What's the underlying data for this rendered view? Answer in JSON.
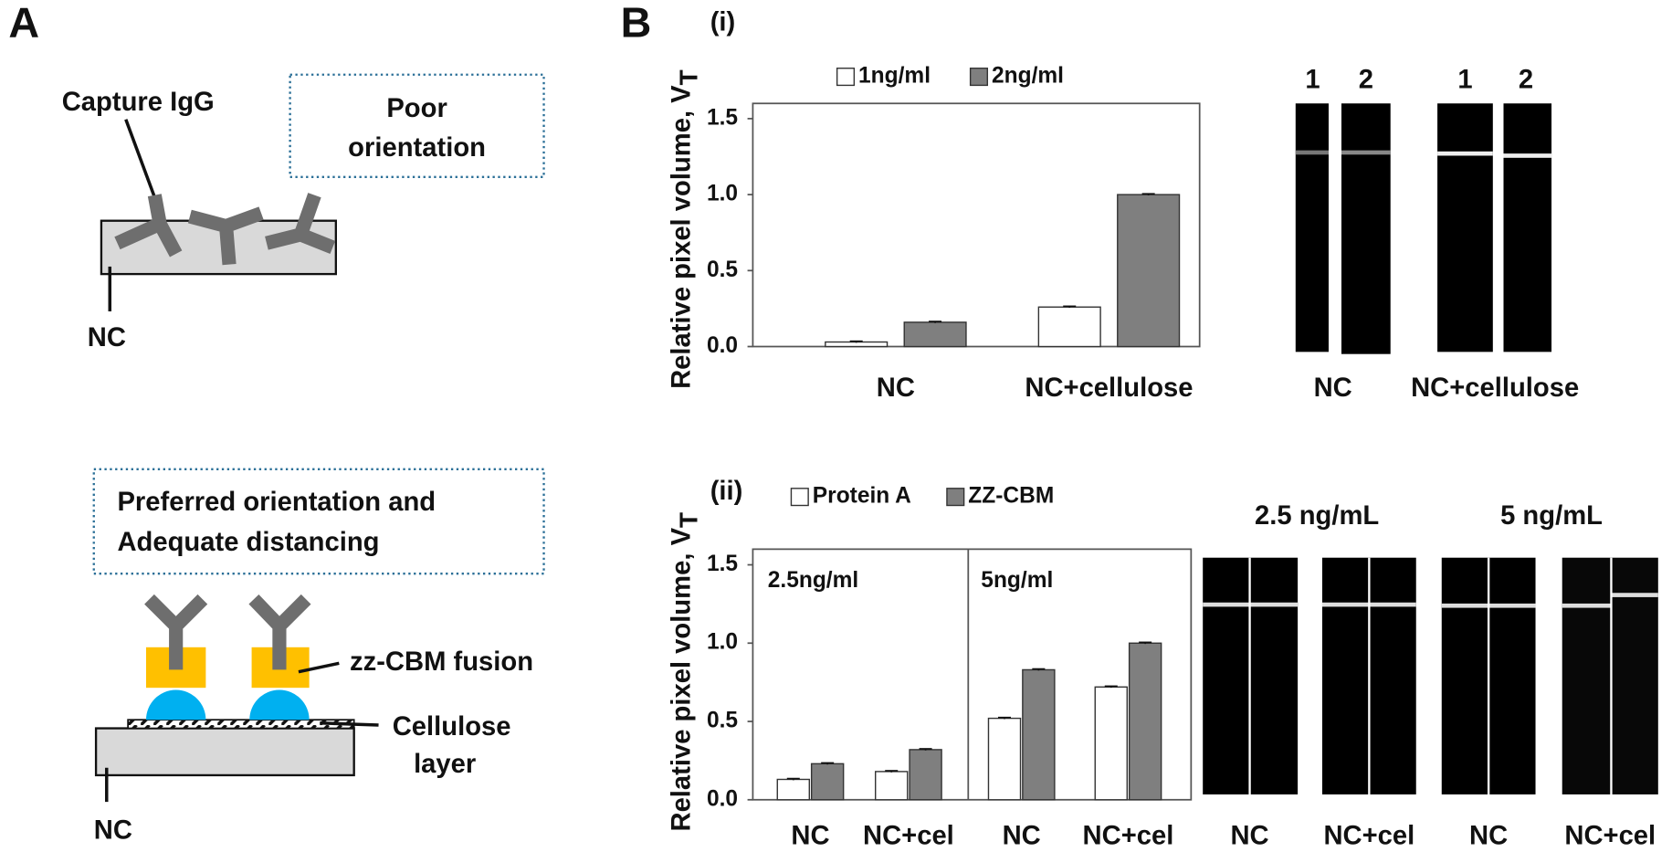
{
  "panel_a": {
    "label": "A",
    "capture": "Capture IgG",
    "poor": [
      "Poor",
      "orientation"
    ],
    "nc_top": "NC",
    "preferred": [
      "Preferred orientation and",
      "Adequate distancing"
    ],
    "fusion": "zz-CBM fusion",
    "cellulose": [
      "Cellulose",
      "layer"
    ],
    "nc_bottom": "NC"
  },
  "panel_b": {
    "label": "B"
  },
  "chart_data": [
    {
      "type": "bar",
      "panel": "(i)",
      "y_label": {
        "text": "Relative pixel volume, V",
        "subscript": "T"
      },
      "categories": [
        "NC",
        "NC+cellulose"
      ],
      "series": [
        {
          "name": "1ng/ml",
          "color": "#ffffff",
          "values": [
            0.03,
            0.26
          ],
          "errors": [
            0.005,
            0.005
          ]
        },
        {
          "name": "2ng/ml",
          "color": "#7f7f7f",
          "values": [
            0.16,
            1.0
          ],
          "errors": [
            0.005,
            0.005
          ]
        }
      ],
      "ylim": [
        0,
        1.6
      ],
      "yticks": [
        {
          "value": 0,
          "label": "0.0"
        },
        0.5,
        {
          "value": 1,
          "label": "1.0"
        },
        1.5
      ]
    },
    {
      "type": "bar",
      "panel": "(ii)",
      "y_label": {
        "text": "Relative pixel volume, V",
        "subscript": "T"
      },
      "categories": [
        "NC",
        "NC+cel",
        "NC",
        "NC+cel"
      ],
      "group_labels": [
        "2.5ng/ml",
        "5ng/ml"
      ],
      "series": [
        {
          "name": "Protein A",
          "color": "#ffffff",
          "values": [
            0.13,
            0.18,
            0.52,
            0.72
          ],
          "errors": [
            0.005,
            0.005,
            0.005,
            0.005
          ]
        },
        {
          "name": "ZZ-CBM",
          "color": "#7f7f7f",
          "values": [
            0.23,
            0.32,
            0.83,
            1.0
          ],
          "errors": [
            0.005,
            0.005,
            0.005,
            0.005
          ]
        }
      ],
      "ylim": [
        0,
        1.6
      ],
      "yticks": [
        {
          "value": 0,
          "label": "0.0"
        },
        0.5,
        {
          "value": 1,
          "label": "1.0"
        },
        1.5
      ]
    }
  ],
  "gels": {
    "lanes_i": [
      "1",
      "2",
      "1",
      "2"
    ],
    "groups_i": [
      "NC",
      "NC+cellulose"
    ],
    "headers_ii": [
      "2.5 ng/mL",
      "5 ng/mL"
    ],
    "groups_ii": [
      "NC",
      "NC+cel",
      "NC",
      "NC+cel"
    ]
  }
}
